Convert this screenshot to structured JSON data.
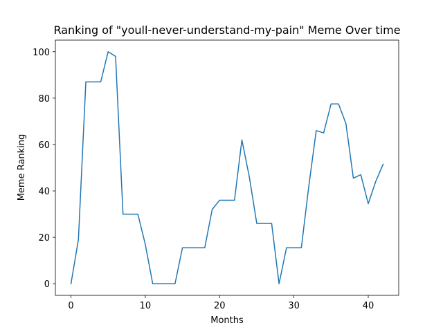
{
  "chart_data": {
    "type": "line",
    "title": "Ranking of \"youll-never-understand-my-pain\" Meme Over time",
    "xlabel": "Months",
    "ylabel": "Meme Ranking",
    "xlim": [
      -2.1,
      44.1
    ],
    "ylim": [
      -5,
      105
    ],
    "xticks": [
      0,
      10,
      20,
      30,
      40
    ],
    "yticks": [
      0,
      20,
      40,
      60,
      80,
      100
    ],
    "grid": false,
    "line_color": "#1f77b4",
    "series": [
      {
        "x": [
          0,
          1,
          2,
          3,
          4,
          5,
          6,
          7,
          8,
          9,
          10,
          11,
          12,
          13,
          14,
          15,
          16,
          17,
          18,
          19,
          20,
          21,
          22,
          23,
          24,
          25,
          26,
          27,
          28,
          29,
          30,
          31,
          32,
          33,
          34,
          35,
          36,
          37,
          38,
          39,
          40,
          41,
          42
        ],
        "values": [
          0,
          19,
          87,
          87,
          87,
          100,
          98,
          30,
          30,
          30,
          17,
          0,
          0,
          0,
          0,
          15.5,
          15.5,
          15.5,
          15.5,
          32,
          36,
          36,
          36,
          62,
          46,
          26,
          26,
          26,
          0,
          15.5,
          15.5,
          15.5,
          42,
          66,
          65,
          77.5,
          77.5,
          69,
          45.5,
          47,
          34.5,
          44,
          51.5
        ]
      }
    ]
  }
}
